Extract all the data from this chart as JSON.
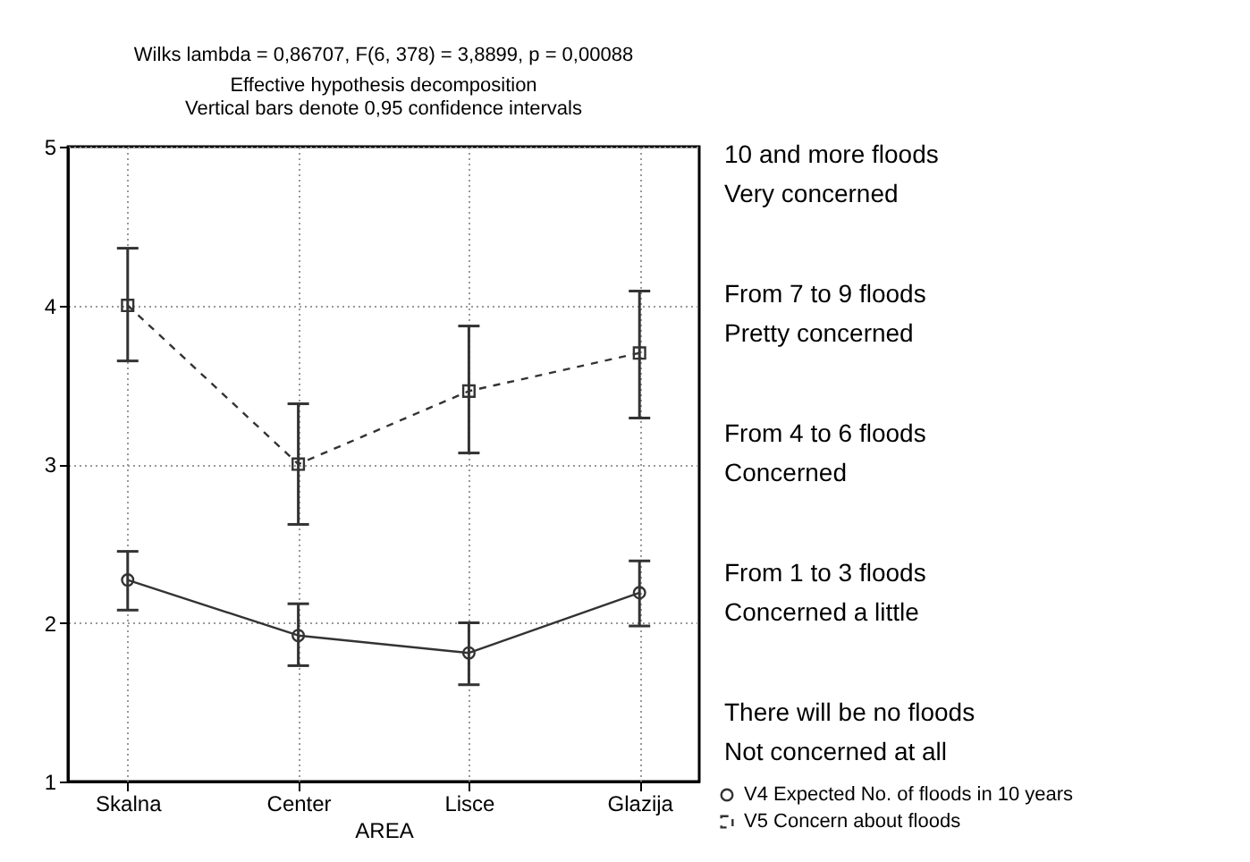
{
  "chart_data": {
    "type": "line",
    "title": "Wilks lambda = 0,86707, F(6, 378) = 3,8899, p = 0,00088",
    "subtitle": "Effective hypothesis decomposition\nVertical bars denote 0,95 confidence intervals",
    "xlabel": "AREA",
    "categories": [
      "Skalna",
      "Center",
      "Lisce",
      "Glazija"
    ],
    "series": [
      {
        "name": "V4 Expected No. of floods in 10 years",
        "color": "#333333",
        "marker": "circle",
        "line_style": "solid",
        "values": [
          2.27,
          1.92,
          1.81,
          2.19
        ],
        "errors": [
          [
            2.08,
            2.45
          ],
          [
            1.73,
            2.12
          ],
          [
            1.61,
            2.0
          ],
          [
            1.98,
            2.39
          ]
        ]
      },
      {
        "name": "V5 Concern about floods",
        "color": "#333333",
        "marker": "square",
        "line_style": "dashed",
        "values": [
          4.0,
          3.0,
          3.46,
          3.7
        ],
        "errors": [
          [
            3.65,
            4.36
          ],
          [
            2.62,
            3.38
          ],
          [
            3.07,
            3.87
          ],
          [
            3.29,
            4.09
          ]
        ]
      }
    ],
    "ylim": [
      1,
      5
    ],
    "yticks": [
      1,
      2,
      3,
      4,
      5
    ],
    "grid": true,
    "legend": "bottom right",
    "annotations": [
      "10 and more floods",
      "Very concerned",
      "From 7 to 9 floods",
      "Pretty concerned",
      "From 4 to 6 floods",
      "Concerned",
      "From 1 to 3 floods",
      "Concerned a little",
      "There will be no floods",
      "Not concerned at all"
    ]
  }
}
